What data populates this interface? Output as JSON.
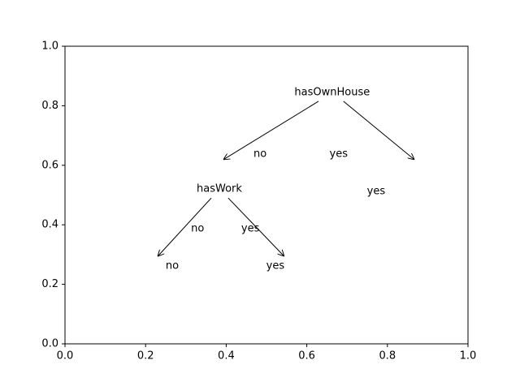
{
  "chart_data": {
    "type": "tree",
    "xlim": [
      0,
      1
    ],
    "ylim": [
      0,
      1
    ],
    "xticks": [
      {
        "value": 0,
        "label": "0.0"
      },
      0.2,
      0.4,
      0.6,
      0.8,
      {
        "value": 1,
        "label": "1.0"
      }
    ],
    "yticks": [
      {
        "value": 0,
        "label": "0.0"
      },
      0.2,
      0.4,
      0.6,
      0.8,
      {
        "value": 1,
        "label": "1.0"
      }
    ],
    "nodes": [
      {
        "label": "hasOwnHouse",
        "x": 0.663,
        "y": 0.845
      },
      {
        "label": "hasWork",
        "x": 0.383,
        "y": 0.52
      },
      {
        "label": "no",
        "x": 0.266,
        "y": 0.262
      },
      {
        "label": "yes",
        "x": 0.522,
        "y": 0.262
      },
      {
        "label": "yes",
        "x": 0.772,
        "y": 0.512
      }
    ],
    "edges": [
      {
        "label": "no",
        "x1": 0.629,
        "y1": 0.815,
        "x2": 0.393,
        "y2": 0.619,
        "label_x": 0.484,
        "label_y": 0.638
      },
      {
        "label": "yes",
        "x1": 0.691,
        "y1": 0.815,
        "x2": 0.867,
        "y2": 0.619,
        "label_x": 0.679,
        "label_y": 0.638
      },
      {
        "label": "no",
        "x1": 0.363,
        "y1": 0.49,
        "x2": 0.23,
        "y2": 0.294,
        "label_x": 0.329,
        "label_y": 0.387
      },
      {
        "label": "yes",
        "x1": 0.405,
        "y1": 0.49,
        "x2": 0.544,
        "y2": 0.294,
        "label_x": 0.46,
        "label_y": 0.387
      }
    ]
  }
}
